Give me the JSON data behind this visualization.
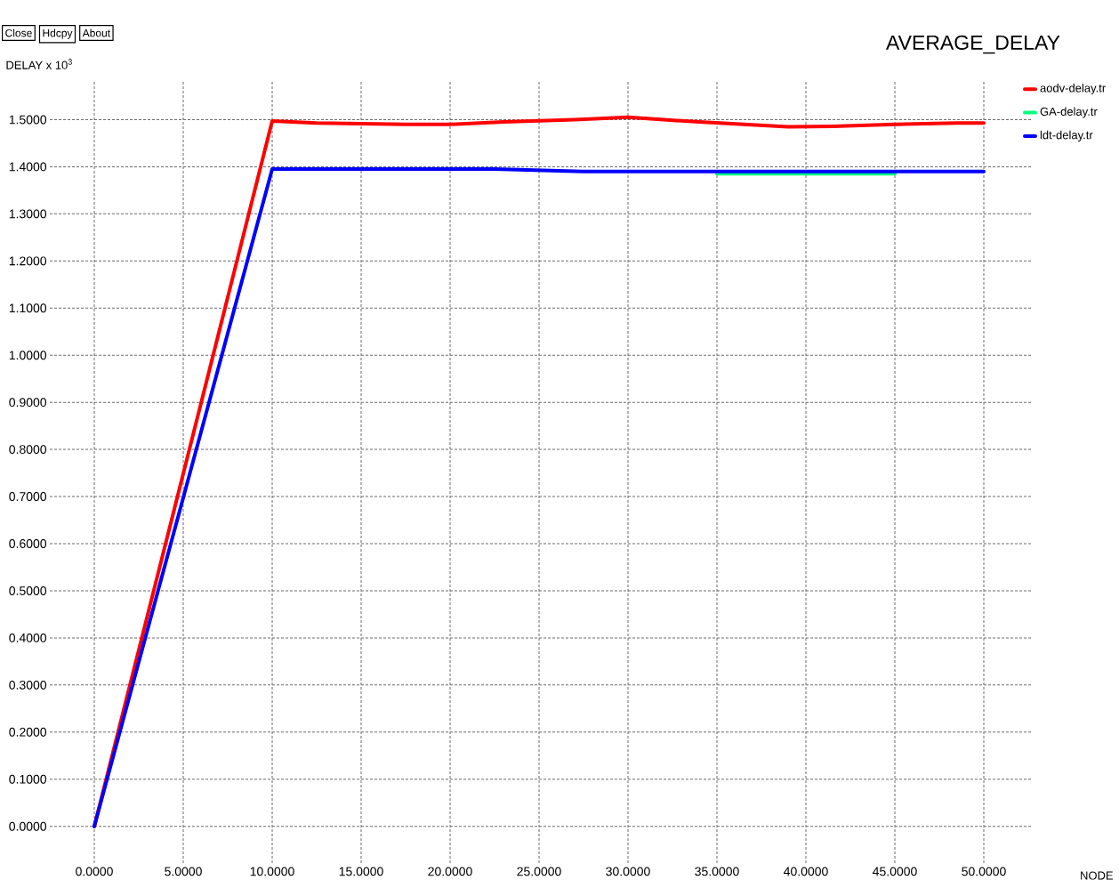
{
  "chart_data": {
    "type": "line",
    "title": "AVERAGE_DELAY",
    "xlabel": "NODE",
    "ylabel": "DELAY x 10$^{3}$",
    "annotations": [
      "Close",
      "Hdcpy",
      "About"
    ],
    "xlim": [
      -2.5,
      52.7
    ],
    "ylim": [
      -0.078,
      1.584
    ],
    "xticks": [
      {
        "value": 0,
        "label": "0.0000"
      },
      {
        "value": 5,
        "label": "5.0000"
      },
      {
        "value": 10,
        "label": "10.0000"
      },
      {
        "value": 15,
        "label": "15.0000"
      },
      {
        "value": 20,
        "label": "20.0000"
      },
      {
        "value": 25,
        "label": "25.0000"
      },
      {
        "value": 30,
        "label": "30.0000"
      },
      {
        "value": 35,
        "label": "35.0000"
      },
      {
        "value": 40,
        "label": "40.0000"
      },
      {
        "value": 45,
        "label": "45.0000"
      },
      {
        "value": 50,
        "label": "50.0000"
      }
    ],
    "yticks": [
      {
        "value": 0,
        "label": "0.0000"
      },
      {
        "value": 0.1,
        "label": "0.1000"
      },
      {
        "value": 0.2,
        "label": "0.2000"
      },
      {
        "value": 0.3,
        "label": "0.3000"
      },
      {
        "value": 0.4,
        "label": "0.4000"
      },
      {
        "value": 0.5,
        "label": "0.5000"
      },
      {
        "value": 0.6,
        "label": "0.6000"
      },
      {
        "value": 0.7,
        "label": "0.7000"
      },
      {
        "value": 0.8,
        "label": "0.8000"
      },
      {
        "value": 0.9,
        "label": "0.9000"
      },
      {
        "value": 1.0,
        "label": "1.0000"
      },
      {
        "value": 1.1,
        "label": "1.1000"
      },
      {
        "value": 1.2,
        "label": "1.2000"
      },
      {
        "value": 1.3,
        "label": "1.3000"
      },
      {
        "value": 1.4,
        "label": "1.4000"
      },
      {
        "value": 1.5,
        "label": "1.5000"
      }
    ],
    "grid": true,
    "legend": "top right",
    "series": [
      {
        "name": "aodv-delay.tr",
        "color": "#ff0000",
        "x": [
          0,
          10,
          12.5,
          17.5,
          20,
          23,
          27,
          30,
          32,
          34,
          36.5,
          39,
          41.5,
          45,
          48.5,
          50
        ],
        "values": [
          0,
          1.497,
          1.493,
          1.49,
          1.49,
          1.495,
          1.5,
          1.505,
          1.5,
          1.495,
          1.49,
          1.485,
          1.486,
          1.49,
          1.493,
          1.493
        ]
      },
      {
        "name": "GA-delay.tr",
        "color": "#00ff7f",
        "x": [
          35,
          45
        ],
        "values": [
          1.385,
          1.385
        ]
      },
      {
        "name": "ldt-delay.tr",
        "color": "#0000ff",
        "x": [
          0,
          10,
          22.5,
          27.5,
          50
        ],
        "values": [
          0,
          1.395,
          1.395,
          1.39,
          1.39
        ]
      }
    ]
  }
}
